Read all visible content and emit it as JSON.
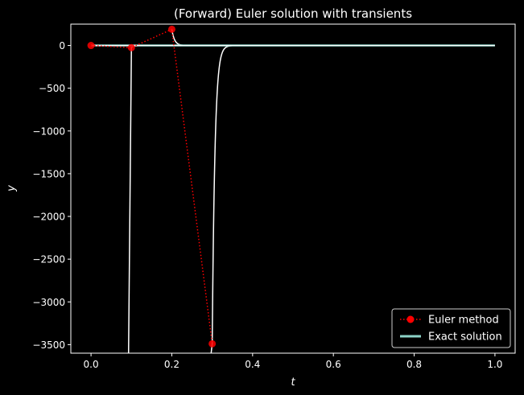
{
  "chart_data": {
    "type": "line",
    "title": "(Forward) Euler solution with transients",
    "xlabel": "t",
    "ylabel": "y",
    "xlim": [
      -0.05,
      1.05
    ],
    "ylim": [
      -3600,
      250
    ],
    "xticks": [
      0.0,
      0.2,
      0.4,
      0.6,
      0.8,
      1.0
    ],
    "xtick_labels": [
      "0.0",
      "0.2",
      "0.4",
      "0.6",
      "0.8",
      "1.0"
    ],
    "yticks": [
      0,
      -500,
      -1000,
      -1500,
      -2000,
      -2500,
      -3000,
      -3500
    ],
    "ytick_labels": [
      "0",
      "−500",
      "−1000",
      "−1500",
      "−2000",
      "−2500",
      "−3000",
      "−3500"
    ],
    "grid": false,
    "legend_position": "lower-right",
    "series": [
      {
        "name": "Euler method",
        "style": "dotted-with-circle-markers",
        "color": "#ff0000",
        "x": [
          0.0,
          0.1,
          0.2,
          0.3
        ],
        "y": [
          0.0,
          -25.0,
          190.0,
          -3490.0
        ]
      },
      {
        "name": "Exact solution",
        "style": "solid",
        "color": "#8dd3c7",
        "x": [
          0.0,
          1.0
        ],
        "y": [
          0.0,
          0.0
        ]
      }
    ],
    "transients": {
      "color": "#ffffff",
      "curves": [
        {
          "t0": 0.0,
          "y0": 0.0
        },
        {
          "t0": 0.1,
          "y0": -25.0
        },
        {
          "t0": 0.2,
          "y0": 190.0
        },
        {
          "t0": 0.3,
          "y0": -3490.0
        }
      ]
    }
  }
}
